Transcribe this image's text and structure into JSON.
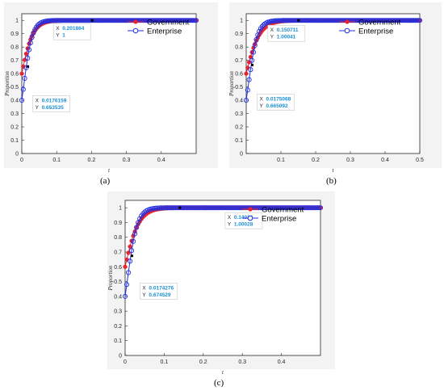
{
  "chart_data": [
    {
      "type": "line",
      "panel_label": "(a)",
      "xlabel": "t",
      "ylabel": "Proportion",
      "xlim": [
        0,
        0.5
      ],
      "ylim": [
        0,
        1.05
      ],
      "xticks": [
        "0",
        "0.1",
        "0.2",
        "0.3",
        "0.4"
      ],
      "xtick_values": [
        0,
        0.1,
        0.2,
        0.3,
        0.4
      ],
      "yticks": [
        "0",
        "0.1",
        "0.2",
        "0.3",
        "0.4",
        "0.5",
        "0.6",
        "0.7",
        "0.8",
        "0.9",
        "1"
      ],
      "ytick_values": [
        0,
        0.1,
        0.2,
        0.3,
        0.4,
        0.5,
        0.6,
        0.7,
        0.8,
        0.9,
        1
      ],
      "series": [
        {
          "name": "Government",
          "color": "#e8242c",
          "marker": "filled-circle",
          "start": 0.6,
          "rate": 55
        },
        {
          "name": "Enterprise",
          "color": "#2230e0",
          "marker": "open-circle",
          "start": 0.4,
          "rate": 80
        }
      ],
      "annotations": [
        {
          "x_label": "X",
          "x": "0.201864",
          "y_label": "Y",
          "y": "1",
          "px": 0.201864,
          "py": 1
        },
        {
          "x_label": "X",
          "x": "0.0176159",
          "y_label": "Y",
          "y": "0.653535",
          "px": 0.0176159,
          "py": 0.653535
        }
      ],
      "legend_position": "top-right"
    },
    {
      "type": "line",
      "panel_label": "(b)",
      "xlabel": "t",
      "ylabel": "Proportion",
      "xlim": [
        0,
        0.5
      ],
      "ylim": [
        0,
        1.05
      ],
      "xticks": [
        "0.1",
        "0.2",
        "0.3",
        "0.4",
        "0.5"
      ],
      "xtick_values": [
        0.1,
        0.2,
        0.3,
        0.4,
        0.5
      ],
      "yticks": [
        "0",
        "0.1",
        "0.2",
        "0.3",
        "0.4",
        "0.5",
        "0.6",
        "0.7",
        "0.8",
        "0.9",
        "1"
      ],
      "ytick_values": [
        0,
        0.1,
        0.2,
        0.3,
        0.4,
        0.5,
        0.6,
        0.7,
        0.8,
        0.9,
        1
      ],
      "series": [
        {
          "name": "Government",
          "color": "#e8242c",
          "marker": "filled-circle",
          "start": 0.6,
          "rate": 45
        },
        {
          "name": "Enterprise",
          "color": "#2230e0",
          "marker": "open-circle",
          "start": 0.4,
          "rate": 75
        }
      ],
      "annotations": [
        {
          "x_label": "X",
          "x": "0.150711",
          "y_label": "Y",
          "y": "1.00041",
          "px": 0.150711,
          "py": 1
        },
        {
          "x_label": "X",
          "x": "0.0175068",
          "y_label": "Y",
          "y": "0.665092",
          "px": 0.0175068,
          "py": 0.665092
        }
      ],
      "legend_position": "top-right"
    },
    {
      "type": "line",
      "panel_label": "(c)",
      "xlabel": "t",
      "ylabel": "Proportion",
      "xlim": [
        0,
        0.5
      ],
      "ylim": [
        0,
        1.05
      ],
      "xticks": [
        "0",
        "0.1",
        "0.2",
        "0.3",
        "0.4"
      ],
      "xtick_values": [
        0,
        0.1,
        0.2,
        0.3,
        0.4
      ],
      "yticks": [
        "0",
        "0.1",
        "0.2",
        "0.3",
        "0.4",
        "0.5",
        "0.6",
        "0.7",
        "0.8",
        "0.9",
        "1"
      ],
      "ytick_values": [
        0,
        0.1,
        0.2,
        0.3,
        0.4,
        0.5,
        0.6,
        0.7,
        0.8,
        0.9,
        1
      ],
      "series": [
        {
          "name": "Government",
          "color": "#e8242c",
          "marker": "filled-circle",
          "start": 0.6,
          "rate": 50
        },
        {
          "name": "Enterprise",
          "color": "#2230e0",
          "marker": "open-circle",
          "start": 0.4,
          "rate": 78
        }
      ],
      "annotations": [
        {
          "x_label": "X",
          "x": "0.14026",
          "y_label": "Y",
          "y": "1.00028",
          "px": 0.14026,
          "py": 1
        },
        {
          "x_label": "X",
          "x": "0.0174276",
          "y_label": "Y",
          "y": "0.674529",
          "px": 0.0174276,
          "py": 0.674529
        }
      ],
      "legend_position": "top-right"
    }
  ]
}
